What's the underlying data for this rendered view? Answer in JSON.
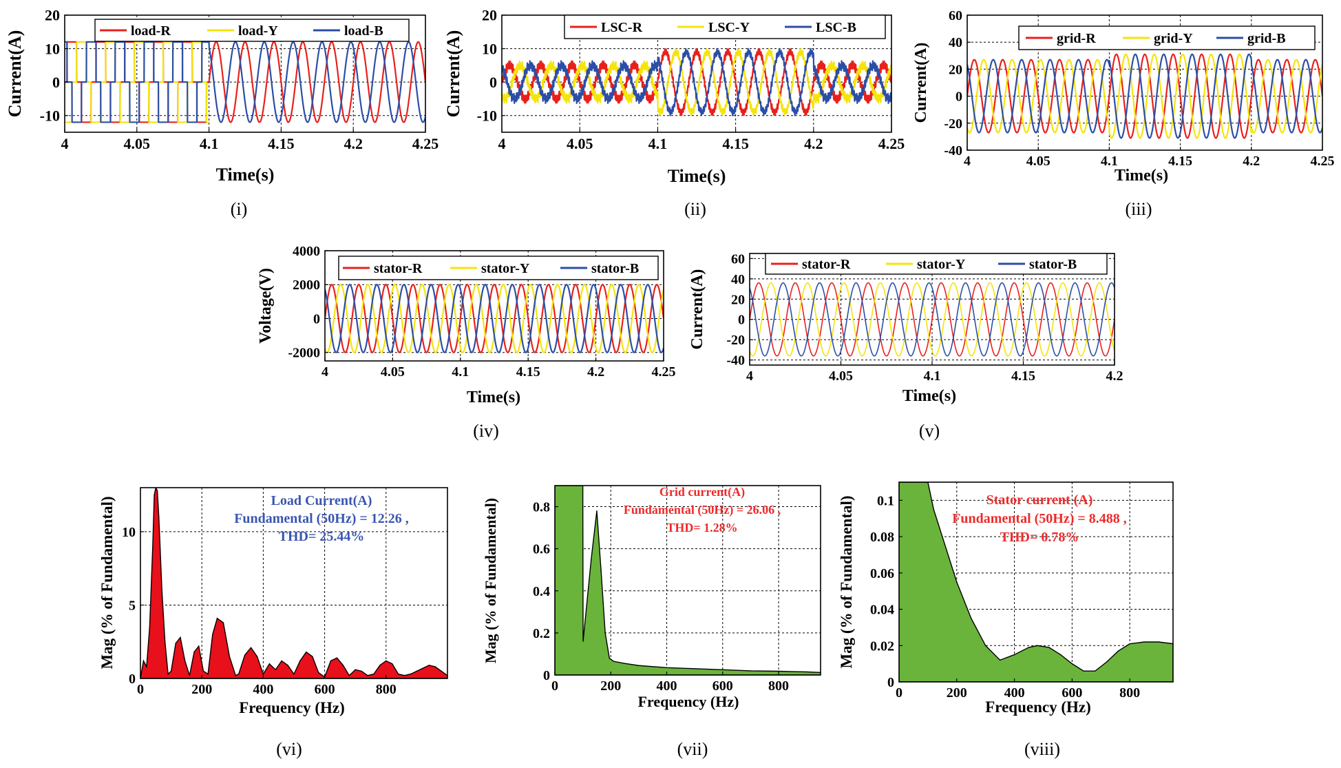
{
  "colors": {
    "red": "#e8201c",
    "yellow": "#f4e40c",
    "blue": "#2b4ea6",
    "spectrum_red": "#e8101a",
    "spectrum_green": "#6ab43c",
    "annotation_blue": "#3a56b0",
    "annotation_red": "#ee2a2a"
  },
  "chart_data": [
    {
      "id": "i",
      "type": "line",
      "caption": "(i)",
      "xlabel": "Time(s)",
      "ylabel": "Current(A)",
      "xlim": [
        4,
        4.25
      ],
      "ylim": [
        -15,
        20
      ],
      "xticks": [
        4,
        4.05,
        4.1,
        4.15,
        4.2,
        4.25
      ],
      "xtick_labels": [
        "4",
        "4.05",
        "4.1",
        "4.15",
        "4.2",
        "4.25"
      ],
      "yticks": [
        -10,
        0,
        10,
        20
      ],
      "ytick_labels": [
        "-10",
        "0",
        "10",
        "20"
      ],
      "frequency_hz": 50,
      "series": [
        {
          "name": "load-R",
          "color_key": "red",
          "amplitude": 12,
          "phase_deg": 0
        },
        {
          "name": "load-Y",
          "color_key": "yellow",
          "amplitude": 12,
          "phase_deg": -120
        },
        {
          "name": "load-B",
          "color_key": "blue",
          "amplitude": 12,
          "phase_deg": 120
        }
      ],
      "segments": [
        {
          "from": 4.0,
          "to": 4.1,
          "waveform": "square",
          "active": [
            "load-R",
            "load-Y",
            "load-B"
          ]
        },
        {
          "from": 4.1,
          "to": 4.25,
          "waveform": "sine",
          "active": [
            "load-R",
            "load-B"
          ]
        }
      ]
    },
    {
      "id": "ii",
      "type": "line",
      "caption": "(ii)",
      "xlabel": "Time(s)",
      "ylabel": "Current(A)",
      "xlim": [
        4,
        4.25
      ],
      "ylim": [
        -15,
        20
      ],
      "xticks": [
        4,
        4.05,
        4.1,
        4.15,
        4.2,
        4.25
      ],
      "xtick_labels": [
        "4",
        "4.05",
        "4.1",
        "4.15",
        "4.2",
        "4.25"
      ],
      "yticks": [
        -10,
        0,
        10,
        20
      ],
      "ytick_labels": [
        "-10",
        "0",
        "10",
        "20"
      ],
      "frequency_hz": 50,
      "series": [
        {
          "name": "LSC-R",
          "color_key": "red",
          "amplitude": 5,
          "phase_deg": 0
        },
        {
          "name": "LSC-Y",
          "color_key": "yellow",
          "amplitude": 5,
          "phase_deg": -120
        },
        {
          "name": "LSC-B",
          "color_key": "blue",
          "amplitude": 5,
          "phase_deg": 120
        }
      ],
      "segments": [
        {
          "from": 4.0,
          "to": 4.1,
          "amplitude": 5,
          "noise": 1.6
        },
        {
          "from": 4.1,
          "to": 4.2,
          "amplitude": 9,
          "noise": 1.2
        },
        {
          "from": 4.2,
          "to": 4.25,
          "amplitude": 5,
          "noise": 1.6
        }
      ]
    },
    {
      "id": "iii",
      "type": "line",
      "caption": "(iii)",
      "xlabel": "Time(s)",
      "ylabel": "Current(A)",
      "xlim": [
        4,
        4.25
      ],
      "ylim": [
        -40,
        60
      ],
      "xticks": [
        4,
        4.05,
        4.1,
        4.15,
        4.2,
        4.25
      ],
      "xtick_labels": [
        "4",
        "4.05",
        "4.1",
        "4.15",
        "4.2",
        "4.25"
      ],
      "yticks": [
        -40,
        -20,
        0,
        20,
        40,
        60
      ],
      "ytick_labels": [
        "-40",
        "-20",
        "0",
        "20",
        "40",
        "60"
      ],
      "frequency_hz": 50,
      "series": [
        {
          "name": "grid-R",
          "color_key": "red",
          "amplitude": 27,
          "phase_deg": 0
        },
        {
          "name": "grid-Y",
          "color_key": "yellow",
          "amplitude": 27,
          "phase_deg": -120
        },
        {
          "name": "grid-B",
          "color_key": "blue",
          "amplitude": 27,
          "phase_deg": 120
        }
      ],
      "segments": [
        {
          "from": 4.0,
          "to": 4.1,
          "amplitude": 27
        },
        {
          "from": 4.1,
          "to": 4.2,
          "amplitude": 31
        },
        {
          "from": 4.2,
          "to": 4.25,
          "amplitude": 27
        }
      ]
    },
    {
      "id": "iv",
      "type": "line",
      "caption": "(iv)",
      "xlabel": "Time(s)",
      "ylabel": "Voltage(V)",
      "xlim": [
        4,
        4.25
      ],
      "ylim": [
        -2500,
        4000
      ],
      "xticks": [
        4,
        4.05,
        4.1,
        4.15,
        4.2,
        4.25
      ],
      "xtick_labels": [
        "4",
        "4.05",
        "4.1",
        "4.15",
        "4.2",
        "4.25"
      ],
      "yticks": [
        -2000,
        0,
        2000,
        4000
      ],
      "ytick_labels": [
        "-2000",
        "0",
        "2000",
        "4000"
      ],
      "frequency_hz": 50,
      "series": [
        {
          "name": "stator-R",
          "color_key": "red",
          "amplitude": 2000,
          "phase_deg": 0
        },
        {
          "name": "stator-Y",
          "color_key": "yellow",
          "amplitude": 2000,
          "phase_deg": -120
        },
        {
          "name": "stator-B",
          "color_key": "blue",
          "amplitude": 2000,
          "phase_deg": 120
        }
      ]
    },
    {
      "id": "v",
      "type": "line",
      "caption": "(v)",
      "xlabel": "Time(s)",
      "ylabel": "Current(A)",
      "xlim": [
        4,
        4.2
      ],
      "ylim": [
        -45,
        65
      ],
      "xticks": [
        4,
        4.05,
        4.1,
        4.15,
        4.2
      ],
      "xtick_labels": [
        "4",
        "4.05",
        "4.1",
        "4.15",
        "4.2"
      ],
      "yticks": [
        -40,
        -20,
        0,
        20,
        40,
        60
      ],
      "ytick_labels": [
        "-40",
        "-20",
        "0",
        "20",
        "40",
        "60"
      ],
      "frequency_hz": 50,
      "series": [
        {
          "name": "stator-R",
          "color_key": "red",
          "amplitude": 36,
          "phase_deg": 0
        },
        {
          "name": "stator-Y",
          "color_key": "yellow",
          "amplitude": 36,
          "phase_deg": -120
        },
        {
          "name": "stator-B",
          "color_key": "blue",
          "amplitude": 36,
          "phase_deg": 120
        }
      ]
    },
    {
      "id": "vi",
      "type": "area",
      "caption": "(vi)",
      "xlabel": "Frequency (Hz)",
      "ylabel": "Mag (% of Fundamental)",
      "xlim": [
        0,
        1000
      ],
      "ylim": [
        0,
        13
      ],
      "xticks": [
        0,
        200,
        400,
        600,
        800
      ],
      "xtick_labels": [
        "0",
        "200",
        "400",
        "600",
        "800"
      ],
      "yticks": [
        0,
        5,
        10
      ],
      "ytick_labels": [
        "0",
        "5",
        "10"
      ],
      "fill_color_key": "spectrum_red",
      "x": [
        0,
        10,
        20,
        30,
        40,
        45,
        50,
        55,
        60,
        70,
        80,
        90,
        100,
        115,
        130,
        145,
        160,
        175,
        190,
        205,
        220,
        235,
        250,
        270,
        290,
        310,
        320,
        340,
        360,
        380,
        400,
        420,
        440,
        460,
        480,
        500,
        520,
        540,
        560,
        580,
        600,
        620,
        640,
        660,
        680,
        700,
        720,
        740,
        760,
        780,
        800,
        820,
        840,
        860,
        880,
        900,
        920,
        940,
        960,
        980,
        1000
      ],
      "values": [
        0,
        1.2,
        0.8,
        3.5,
        9.0,
        12.5,
        13.0,
        12.8,
        11.0,
        6.0,
        2.5,
        0.3,
        0.5,
        2.4,
        2.8,
        1.2,
        0.2,
        1.8,
        2.2,
        0.5,
        0.3,
        3.0,
        4.1,
        3.8,
        1.5,
        0.2,
        0.3,
        1.6,
        2.1,
        1.5,
        0.3,
        1.0,
        0.6,
        1.2,
        0.9,
        0.3,
        1.2,
        1.8,
        1.5,
        0.4,
        0.1,
        1.2,
        1.4,
        0.9,
        0.2,
        0.6,
        0.5,
        0.2,
        0.3,
        0.9,
        1.2,
        1.0,
        0.3,
        0.2,
        0.3,
        0.5,
        0.7,
        0.9,
        0.8,
        0.5,
        0.2
      ],
      "annotation_color_key": "annotation_blue",
      "annotation": [
        "Load Current(A)",
        "Fundamental (50Hz) = 12.26 ,",
        "THD= 25.44%"
      ]
    },
    {
      "id": "vii",
      "type": "area",
      "caption": "(vii)",
      "xlabel": "Frequency (Hz)",
      "ylabel": "Mag (% of Fundamental)",
      "xlim": [
        0,
        950
      ],
      "ylim": [
        0,
        0.9
      ],
      "xticks": [
        0,
        200,
        400,
        600,
        800
      ],
      "xtick_labels": [
        "0",
        "200",
        "400",
        "600",
        "800"
      ],
      "yticks": [
        0,
        0.2,
        0.4,
        0.6,
        0.8
      ],
      "ytick_labels": [
        "0",
        "0.2",
        "0.4",
        "0.6",
        "0.8"
      ],
      "fill_color_key": "spectrum_green",
      "x": [
        0,
        100,
        101,
        130,
        150,
        165,
        180,
        195,
        210,
        250,
        300,
        400,
        500,
        600,
        700,
        800,
        900,
        950
      ],
      "values": [
        0.9,
        0.9,
        0.16,
        0.55,
        0.78,
        0.5,
        0.2,
        0.08,
        0.065,
        0.055,
        0.045,
        0.035,
        0.03,
        0.025,
        0.02,
        0.018,
        0.015,
        0.012
      ],
      "annotation_color_key": "annotation_red",
      "annotation": [
        "Grid current(A)",
        "Fundamental (50Hz) = 26.06 ,",
        "THD= 1.28%"
      ]
    },
    {
      "id": "viii",
      "type": "area",
      "caption": "(viii)",
      "xlabel": "Frequency (Hz)",
      "ylabel": "Mag (% of Fundamental)",
      "xlim": [
        0,
        950
      ],
      "ylim": [
        0,
        0.11
      ],
      "xticks": [
        0,
        200,
        400,
        600,
        800
      ],
      "xtick_labels": [
        "0",
        "200",
        "400",
        "600",
        "800"
      ],
      "yticks": [
        0,
        0.02,
        0.04,
        0.06,
        0.08,
        0.1
      ],
      "ytick_labels": [
        "0",
        "0.02",
        "0.04",
        "0.06",
        "0.08",
        "0.1"
      ],
      "fill_color_key": "spectrum_green",
      "x": [
        0,
        100,
        120,
        150,
        200,
        250,
        300,
        350,
        400,
        450,
        480,
        520,
        560,
        600,
        640,
        680,
        720,
        760,
        800,
        850,
        900,
        950
      ],
      "values": [
        0.11,
        0.11,
        0.095,
        0.08,
        0.055,
        0.035,
        0.02,
        0.012,
        0.015,
        0.019,
        0.02,
        0.019,
        0.015,
        0.01,
        0.006,
        0.006,
        0.011,
        0.017,
        0.021,
        0.022,
        0.022,
        0.021
      ],
      "annotation_color_key": "annotation_red",
      "annotation": [
        "Stator current (A)",
        "Fundamental (50Hz) = 8.488 ,",
        "THD= 0.78%"
      ]
    }
  ]
}
